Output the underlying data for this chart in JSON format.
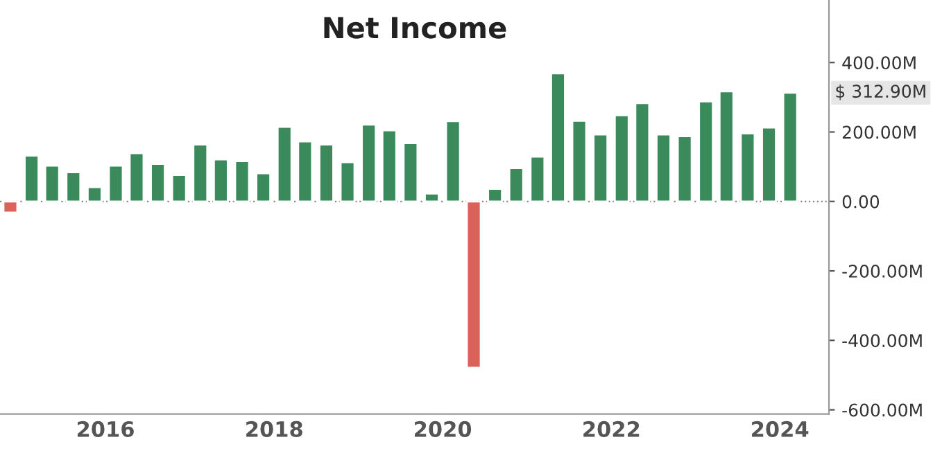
{
  "chart_data": {
    "type": "bar",
    "title": "Net Income",
    "x": [
      "2014-11-15",
      "2015-02-15",
      "2015-05-15",
      "2015-08-15",
      "2015-11-15",
      "2016-02-15",
      "2016-05-15",
      "2016-08-15",
      "2016-11-15",
      "2017-02-15",
      "2017-05-15",
      "2017-08-15",
      "2017-11-15",
      "2018-02-15",
      "2018-05-15",
      "2018-08-15",
      "2018-11-15",
      "2019-02-15",
      "2019-05-15",
      "2019-08-15",
      "2019-11-15",
      "2020-02-15",
      "2020-05-15",
      "2020-08-15",
      "2020-11-15",
      "2021-02-15",
      "2021-05-15",
      "2021-08-15",
      "2021-11-15",
      "2022-02-15",
      "2022-05-15",
      "2022-08-15",
      "2022-11-15",
      "2023-02-15",
      "2023-05-15",
      "2023-08-15",
      "2023-11-15",
      "2024-02-15"
    ],
    "values": [
      -32,
      132,
      103,
      84,
      41,
      103,
      139,
      108,
      76,
      164,
      121,
      116,
      81,
      215,
      173,
      164,
      113,
      221,
      205,
      168,
      23,
      231,
      -479,
      36,
      96,
      129,
      369,
      232,
      193,
      248,
      283,
      193,
      188,
      288,
      317,
      196,
      213,
      312.9
    ],
    "colors": [
      "#d9625a",
      "#3a8a5c",
      "#3a8a5c",
      "#3a8a5c",
      "#3a8a5c",
      "#3a8a5c",
      "#3a8a5c",
      "#3a8a5c",
      "#3a8a5c",
      "#3a8a5c",
      "#3a8a5c",
      "#3a8a5c",
      "#3a8a5c",
      "#3a8a5c",
      "#3a8a5c",
      "#3a8a5c",
      "#3a8a5c",
      "#3a8a5c",
      "#3a8a5c",
      "#3a8a5c",
      "#3a8a5c",
      "#3a8a5c",
      "#d9625a",
      "#3a8a5c",
      "#3a8a5c",
      "#3a8a5c",
      "#3a8a5c",
      "#3a8a5c",
      "#3a8a5c",
      "#3a8a5c",
      "#3a8a5c",
      "#3a8a5c",
      "#3a8a5c",
      "#3a8a5c",
      "#3a8a5c",
      "#3a8a5c",
      "#3a8a5c",
      "#3a8a5c"
    ],
    "xlim": [
      "2014-10-01",
      "2024-08-01"
    ],
    "xticks": [
      {
        "value": "2016-01-01",
        "label": "2016"
      },
      {
        "value": "2018-01-01",
        "label": "2018"
      },
      {
        "value": "2020-01-01",
        "label": "2020"
      },
      {
        "value": "2022-01-01",
        "label": "2022"
      },
      {
        "value": "2024-01-01",
        "label": "2024"
      }
    ],
    "ylim": [
      -612,
      580
    ],
    "yticks": [
      {
        "value": -600,
        "label": "-600.00M"
      },
      {
        "value": -400,
        "label": "-400.00M"
      },
      {
        "value": -200,
        "label": "-200.00M"
      },
      {
        "value": 0,
        "label": "0.00"
      },
      {
        "value": 200,
        "label": "200.00M"
      },
      {
        "value": 400,
        "label": "400.00M"
      }
    ],
    "ref_lines": [
      {
        "axis": "y",
        "value": 0,
        "color": "#888888",
        "line_style": "dotted"
      }
    ],
    "annotations": [
      "$ 312.90M"
    ],
    "grid": false,
    "legend": false
  }
}
